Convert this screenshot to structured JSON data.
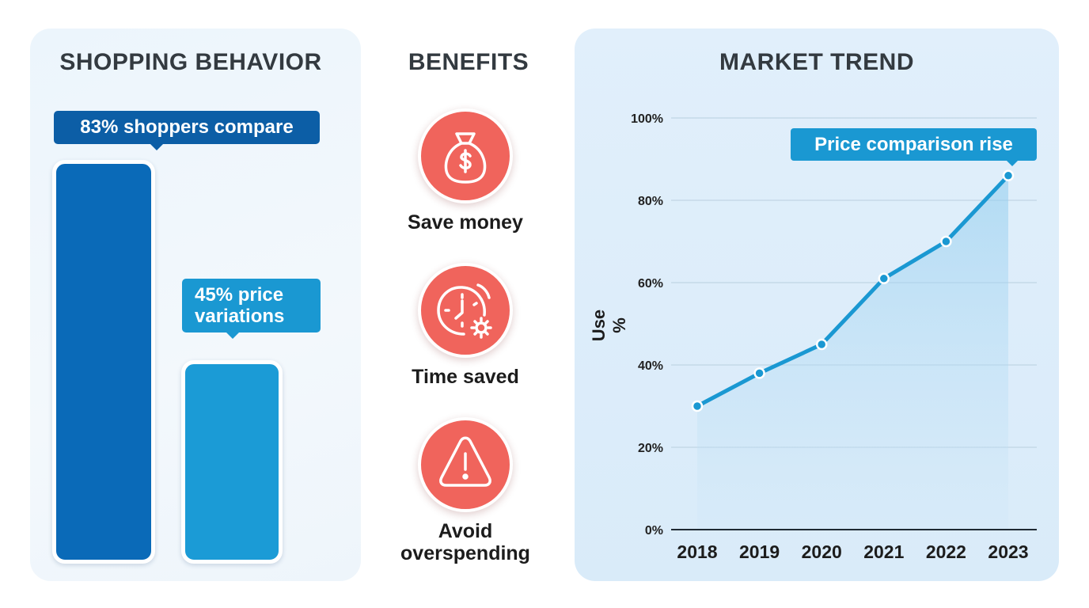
{
  "left": {
    "heading": "SHOPPING BEHAVIOR",
    "callout_1": "83% shoppers compare",
    "callout_2": "45% price variations"
  },
  "benefits": {
    "heading": "BENEFITS",
    "items": [
      {
        "label": "Save money",
        "icon": "money-bag-icon"
      },
      {
        "label": "Time saved",
        "icon": "clock-gear-icon"
      },
      {
        "label": "Avoid overspending",
        "icon": "warning-icon"
      }
    ]
  },
  "right": {
    "heading": "MARKET TREND",
    "callout": "Price comparison rise"
  },
  "colors": {
    "bar_dark": "#0a6ab8",
    "bar_light": "#1b9bd6",
    "icon_bg": "#f0645c",
    "line": "#1a98d2"
  },
  "chart_data": [
    {
      "type": "bar",
      "title": "SHOPPING BEHAVIOR",
      "categories": [
        "83% shoppers compare",
        "45% price variations"
      ],
      "values": [
        83,
        45
      ],
      "ylim": [
        0,
        90
      ]
    },
    {
      "type": "line",
      "title": "MARKET TREND",
      "ylabel": "Use %",
      "x": [
        "2018",
        "2019",
        "2020",
        "2021",
        "2022",
        "2023"
      ],
      "y": [
        30,
        38,
        45,
        61,
        70,
        86
      ],
      "ylim": [
        0,
        100
      ],
      "yticks": [
        "0%",
        "20%",
        "40%",
        "60%",
        "80%",
        "100%"
      ],
      "grid": true,
      "annotation": "Price comparison rise"
    }
  ]
}
